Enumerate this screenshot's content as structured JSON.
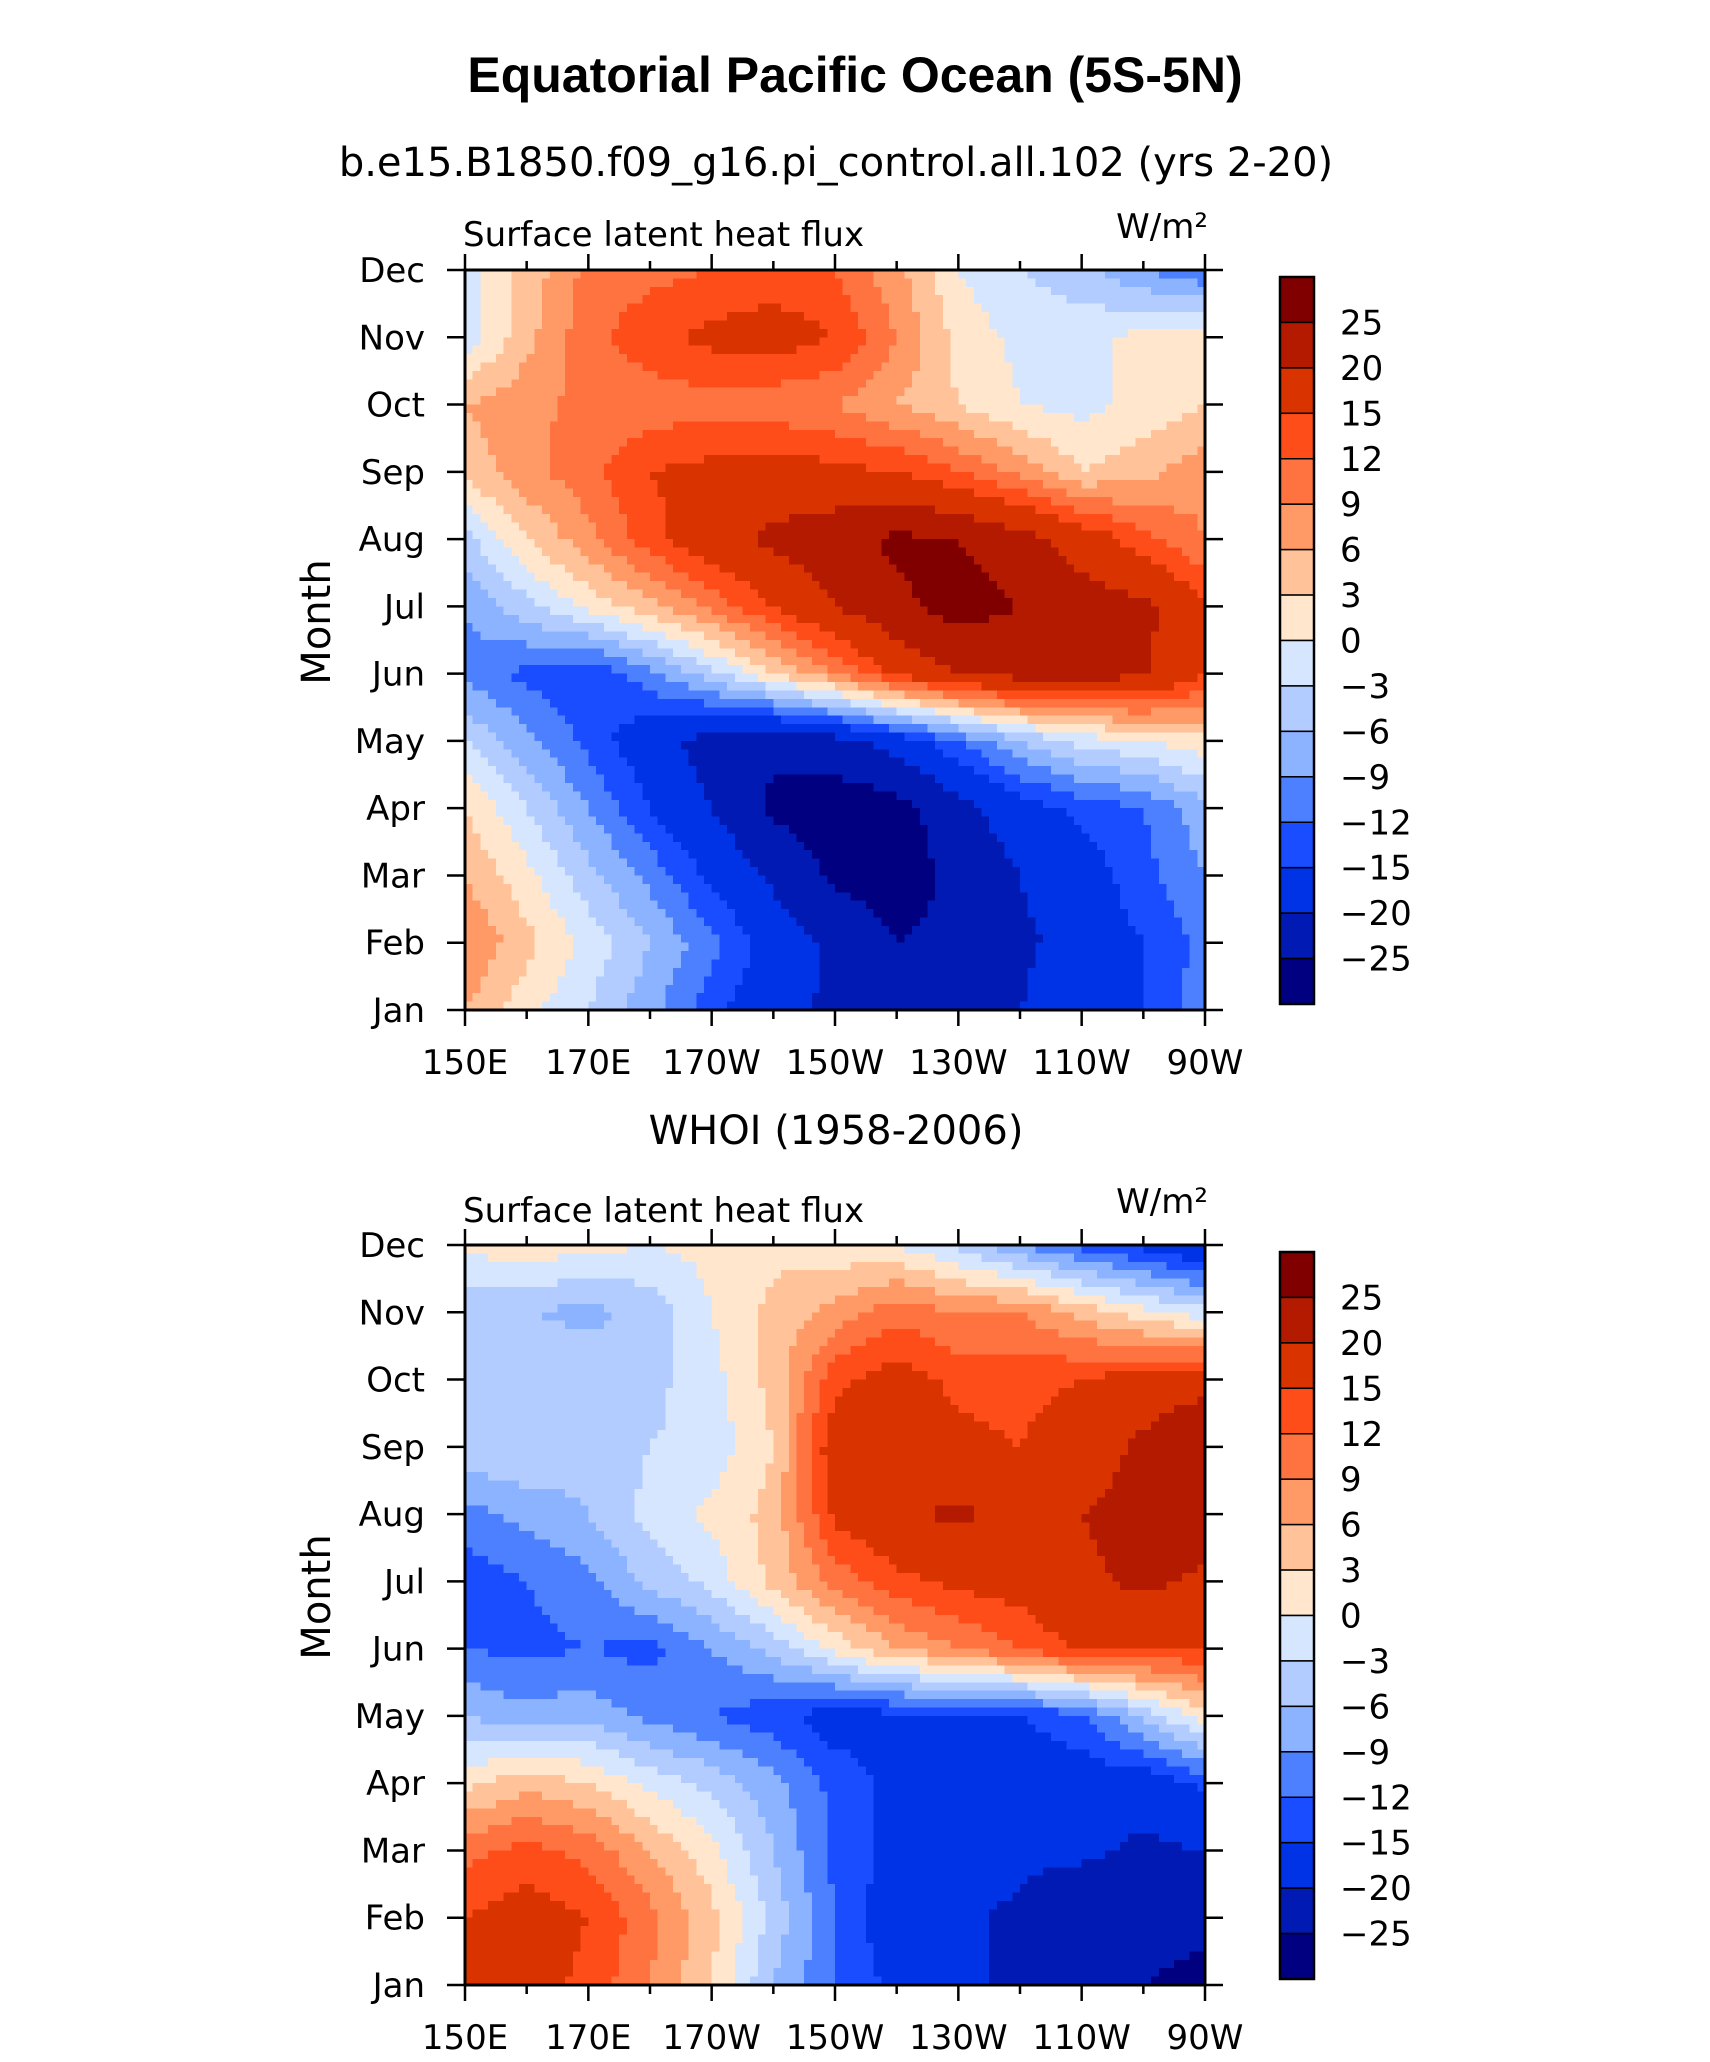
{
  "title": "Equatorial Pacific Ocean (5S-5N)",
  "colors": [
    "#800000",
    "#b31a00",
    "#d93300",
    "#ff4d1a",
    "#ff7340",
    "#ff9966",
    "#ffc299",
    "#ffe6cc",
    "#d6e6ff",
    "#b3ccff",
    "#8cb3ff",
    "#4d80ff",
    "#1a4dff",
    "#0033e6",
    "#001ab3",
    "#000080"
  ],
  "chart_data": [
    {
      "type": "heatmap",
      "title": "b.e15.B1850.f09_g16.pi_control.all.102 (yrs 2-20)",
      "left_label": "Surface latent heat flux",
      "right_label": "W/m²",
      "xlabel": "",
      "ylabel": "Month",
      "x_ticks": [
        "150E",
        "170E",
        "170W",
        "150W",
        "130W",
        "110W",
        "90W"
      ],
      "y_ticks": [
        "Jan",
        "Feb",
        "Mar",
        "Apr",
        "May",
        "Jun",
        "Jul",
        "Aug",
        "Sep",
        "Oct",
        "Nov",
        "Dec"
      ],
      "colorbar_labels": [
        "25",
        "20",
        "15",
        "12",
        "9",
        "6",
        "3",
        "0",
        "−3",
        "−6",
        "−9",
        "−12",
        "−15",
        "−20",
        "−25"
      ],
      "x_lon": [
        150,
        160,
        170,
        180,
        190,
        200,
        210,
        220,
        230,
        240,
        250,
        260,
        270
      ],
      "months": [
        "Jan",
        "Feb",
        "Mar",
        "Apr",
        "May",
        "Jun",
        "Jul",
        "Aug",
        "Sep",
        "Oct",
        "Nov",
        "Dec"
      ],
      "values": [
        [
          6,
          1,
          -3,
          -8,
          -14,
          -18,
          -21,
          -24,
          -23,
          -20,
          -17,
          -15,
          -10
        ],
        [
          9,
          4,
          -1,
          -6,
          -11,
          -17,
          -21,
          -25,
          -24,
          -21,
          -18,
          -15,
          -11
        ],
        [
          6,
          1,
          -5,
          -10,
          -16,
          -21,
          -26,
          -27,
          -24,
          -20,
          -17,
          -13,
          -9
        ],
        [
          3,
          -3,
          -9,
          -15,
          -20,
          -26,
          -28,
          -27,
          -22,
          -17,
          -14,
          -12,
          -7
        ],
        [
          -3,
          -8,
          -13,
          -18,
          -22,
          -24,
          -22,
          -18,
          -12,
          -6,
          -2,
          0,
          2
        ],
        [
          -10,
          -13,
          -15,
          -10,
          -4,
          3,
          9,
          16,
          20,
          22,
          22,
          21,
          15
        ],
        [
          -9,
          -4,
          1,
          5,
          10,
          15,
          20,
          24,
          27,
          25,
          22,
          21,
          16
        ],
        [
          -4,
          3,
          8,
          14,
          18,
          21,
          23,
          26,
          25,
          22,
          18,
          13,
          9
        ],
        [
          4,
          8,
          11,
          15,
          16,
          17,
          16,
          15,
          12,
          8,
          3,
          5,
          8
        ],
        [
          6,
          8,
          10,
          10,
          11,
          10,
          9,
          6,
          3,
          0,
          -1,
          1,
          3
        ],
        [
          -2,
          5,
          11,
          14,
          16,
          17,
          15,
          9,
          2,
          -1,
          -1,
          1,
          2
        ],
        [
          -1,
          4,
          10,
          11,
          12,
          13,
          12,
          7,
          0,
          -3,
          -5,
          -9,
          -12
        ]
      ]
    },
    {
      "type": "heatmap",
      "title": "WHOI (1958-2006)",
      "left_label": "Surface latent heat flux",
      "right_label": "W/m²",
      "xlabel": "",
      "ylabel": "Month",
      "x_ticks": [
        "150E",
        "170E",
        "170W",
        "150W",
        "130W",
        "110W",
        "90W"
      ],
      "y_ticks": [
        "Jan",
        "Feb",
        "Mar",
        "Apr",
        "May",
        "Jun",
        "Jul",
        "Aug",
        "Sep",
        "Oct",
        "Nov",
        "Dec"
      ],
      "colorbar_labels": [
        "25",
        "20",
        "15",
        "12",
        "9",
        "6",
        "3",
        "0",
        "−3",
        "−6",
        "−9",
        "−12",
        "−15",
        "−20",
        "−25"
      ],
      "x_lon": [
        150,
        160,
        170,
        180,
        190,
        200,
        210,
        220,
        230,
        240,
        250,
        260,
        270
      ],
      "months": [
        "Jan",
        "Feb",
        "Mar",
        "Apr",
        "May",
        "Jun",
        "Jul",
        "Aug",
        "Sep",
        "Oct",
        "Nov",
        "Dec"
      ],
      "values": [
        [
          15,
          17,
          14,
          9,
          3,
          -6,
          -12,
          -16,
          -19,
          -21,
          -23,
          -25,
          -26
        ],
        [
          15,
          17,
          15,
          10,
          4,
          -4,
          -12,
          -18,
          -19,
          -21,
          -24,
          -24,
          -24
        ],
        [
          11,
          13,
          11,
          6,
          1,
          -6,
          -13,
          -16,
          -17,
          -19,
          -19,
          -21,
          -20
        ],
        [
          2,
          5,
          3,
          -1,
          -4,
          -8,
          -13,
          -16,
          -16,
          -17,
          -17,
          -18,
          -14
        ],
        [
          -6,
          -8,
          -7,
          -10,
          -12,
          -14,
          -17,
          -16,
          -16,
          -15,
          -13,
          -5,
          2
        ],
        [
          -12,
          -13,
          -12,
          -13,
          -9,
          -5,
          1,
          6,
          9,
          12,
          16,
          15,
          15
        ],
        [
          -14,
          -12,
          -10,
          -5,
          -2,
          4,
          10,
          14,
          16,
          17,
          19,
          21,
          19
        ],
        [
          -10,
          -8,
          -6,
          -2,
          1,
          4,
          16,
          19,
          21,
          18,
          20,
          22,
          23
        ],
        [
          -4,
          -3,
          -5,
          -3,
          -2,
          3,
          18,
          18,
          16,
          15,
          17,
          21,
          25
        ],
        [
          -3,
          -3,
          -4,
          -4,
          -1,
          4,
          14,
          17,
          14,
          14,
          15,
          17,
          18
        ],
        [
          -6,
          -6,
          -7,
          -5,
          0,
          4,
          7,
          11,
          9,
          9,
          5,
          1,
          -2
        ],
        [
          1,
          2,
          1,
          0,
          1,
          2,
          1,
          0,
          -4,
          -9,
          -13,
          -16,
          -20
        ]
      ]
    }
  ]
}
